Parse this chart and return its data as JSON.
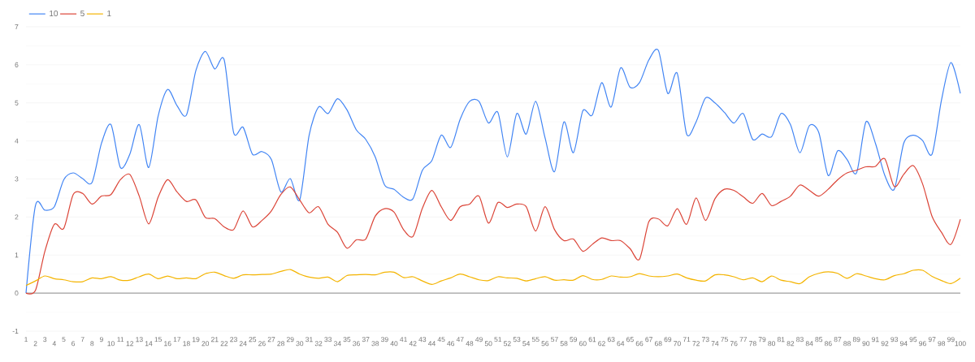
{
  "chart_data": {
    "type": "line",
    "categories": [
      "1",
      "2",
      "3",
      "4",
      "5",
      "6",
      "7",
      "8",
      "9",
      "10",
      "11",
      "12",
      "13",
      "14",
      "15",
      "16",
      "17",
      "18",
      "19",
      "20",
      "21",
      "22",
      "23",
      "24",
      "25",
      "26",
      "27",
      "28",
      "29",
      "30",
      "31",
      "32",
      "33",
      "34",
      "35",
      "36",
      "37",
      "38",
      "39",
      "40",
      "41",
      "42",
      "43",
      "44",
      "45",
      "46",
      "47",
      "48",
      "49",
      "50",
      "51",
      "52",
      "53",
      "54",
      "55",
      "56",
      "57",
      "58",
      "59",
      "60",
      "61",
      "62",
      "63",
      "64",
      "65",
      "66",
      "67",
      "68",
      "69",
      "70",
      "71",
      "72",
      "73",
      "74",
      "75",
      "76",
      "77",
      "78",
      "79",
      "80",
      "81",
      "82",
      "83",
      "84",
      "85",
      "86",
      "87",
      "88",
      "89",
      "90",
      "91",
      "92",
      "93",
      "94",
      "95",
      "96",
      "97",
      "98",
      "99",
      "100"
    ],
    "series": [
      {
        "name": "10",
        "color": "#4285f4",
        "values": [
          0,
          2.3,
          2.18,
          2.27,
          2.98,
          3.16,
          3.01,
          2.91,
          3.94,
          4.43,
          3.3,
          3.65,
          4.43,
          3.3,
          4.65,
          5.35,
          4.93,
          4.68,
          5.85,
          6.35,
          5.89,
          6.13,
          4.22,
          4.36,
          3.65,
          3.72,
          3.51,
          2.66,
          3.01,
          2.45,
          4.15,
          4.89,
          4.72,
          5.11,
          4.82,
          4.29,
          4.04,
          3.58,
          2.84,
          2.73,
          2.52,
          2.48,
          3.23,
          3.48,
          4.15,
          3.83,
          4.57,
          5.04,
          5.04,
          4.47,
          4.75,
          3.58,
          4.72,
          4.18,
          5.04,
          4.08,
          3.19,
          4.5,
          3.69,
          4.79,
          4.68,
          5.53,
          4.89,
          5.92,
          5.41,
          5.53,
          6.13,
          6.38,
          5.25,
          5.78,
          4.18,
          4.5,
          5.13,
          5.0,
          4.75,
          4.47,
          4.72,
          4.04,
          4.18,
          4.11,
          4.72,
          4.43,
          3.69,
          4.4,
          4.22,
          3.09,
          3.74,
          3.51,
          3.16,
          4.5,
          3.94,
          3.09,
          2.73,
          3.94,
          4.15,
          4.01,
          3.65,
          5.07,
          6.06,
          5.25
        ]
      },
      {
        "name": "5",
        "color": "#db4437",
        "values": [
          0,
          0.07,
          1.1,
          1.81,
          1.7,
          2.59,
          2.62,
          2.34,
          2.55,
          2.59,
          2.98,
          3.12,
          2.55,
          1.82,
          2.52,
          2.98,
          2.66,
          2.41,
          2.45,
          1.99,
          1.96,
          1.74,
          1.67,
          2.16,
          1.74,
          1.91,
          2.16,
          2.59,
          2.79,
          2.45,
          2.11,
          2.27,
          1.81,
          1.6,
          1.18,
          1.4,
          1.42,
          2.02,
          2.22,
          2.13,
          1.67,
          1.49,
          2.23,
          2.7,
          2.27,
          1.91,
          2.27,
          2.34,
          2.55,
          1.84,
          2.38,
          2.25,
          2.34,
          2.27,
          1.63,
          2.27,
          1.67,
          1.38,
          1.42,
          1.1,
          1.28,
          1.45,
          1.38,
          1.38,
          1.17,
          0.89,
          1.88,
          1.95,
          1.77,
          2.22,
          1.81,
          2.5,
          1.91,
          2.48,
          2.73,
          2.7,
          2.53,
          2.36,
          2.62,
          2.3,
          2.41,
          2.55,
          2.84,
          2.7,
          2.55,
          2.73,
          2.98,
          3.16,
          3.23,
          3.32,
          3.33,
          3.53,
          2.8,
          3.12,
          3.35,
          2.87,
          2.02,
          1.6,
          1.28,
          1.94
        ]
      },
      {
        "name": "1",
        "color": "#f4b400",
        "values": [
          0.2,
          0.32,
          0.45,
          0.38,
          0.35,
          0.3,
          0.3,
          0.4,
          0.38,
          0.43,
          0.34,
          0.34,
          0.43,
          0.5,
          0.38,
          0.45,
          0.38,
          0.4,
          0.38,
          0.51,
          0.55,
          0.46,
          0.39,
          0.48,
          0.48,
          0.49,
          0.5,
          0.57,
          0.62,
          0.5,
          0.42,
          0.39,
          0.42,
          0.3,
          0.46,
          0.48,
          0.49,
          0.48,
          0.55,
          0.55,
          0.41,
          0.43,
          0.32,
          0.23,
          0.32,
          0.4,
          0.5,
          0.43,
          0.35,
          0.33,
          0.43,
          0.4,
          0.39,
          0.32,
          0.38,
          0.43,
          0.34,
          0.35,
          0.34,
          0.46,
          0.36,
          0.36,
          0.45,
          0.42,
          0.43,
          0.51,
          0.45,
          0.43,
          0.45,
          0.5,
          0.4,
          0.34,
          0.32,
          0.48,
          0.48,
          0.43,
          0.35,
          0.4,
          0.3,
          0.45,
          0.34,
          0.3,
          0.25,
          0.43,
          0.52,
          0.56,
          0.52,
          0.39,
          0.51,
          0.45,
          0.38,
          0.35,
          0.46,
          0.51,
          0.6,
          0.6,
          0.44,
          0.33,
          0.25,
          0.39
        ]
      }
    ],
    "ylim": [
      -1,
      7
    ],
    "yticks": [
      -1,
      0,
      1,
      2,
      3,
      4,
      5,
      6,
      7
    ],
    "grid": "y",
    "legend": "top left",
    "marker": "none",
    "line_style": "solid"
  }
}
